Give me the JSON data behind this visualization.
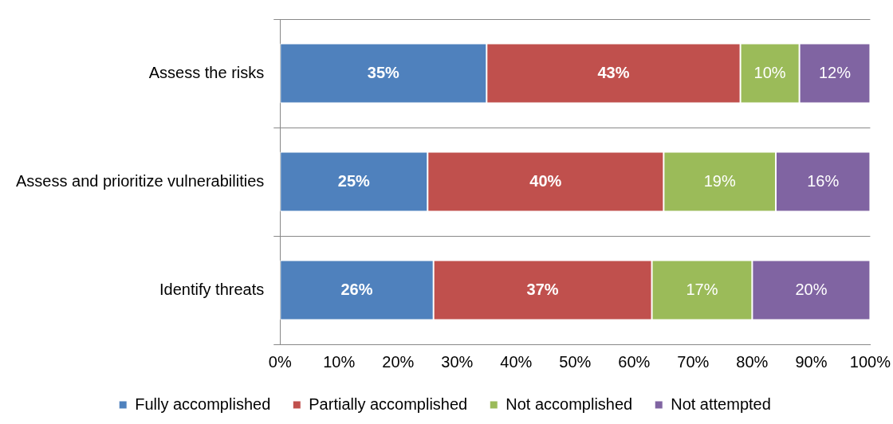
{
  "chart_data": {
    "type": "bar",
    "orientation": "horizontal",
    "stacked": true,
    "categories": [
      "Assess the risks",
      "Assess and prioritize vulnerabilities",
      "Identify threats"
    ],
    "series": [
      {
        "name": "Fully accomplished",
        "color": "#4f81bd",
        "values": [
          35,
          25,
          26
        ],
        "value_labels": [
          "35%",
          "25%",
          "26%"
        ]
      },
      {
        "name": "Partially accomplished",
        "color": "#c0504d",
        "values": [
          43,
          40,
          37
        ],
        "value_labels": [
          "43%",
          "40%",
          "37%"
        ]
      },
      {
        "name": "Not accomplished",
        "color": "#9bbb59",
        "values": [
          10,
          19,
          17
        ],
        "value_labels": [
          "10%",
          "19%",
          "17%"
        ]
      },
      {
        "name": "Not attempted",
        "color": "#8064a2",
        "values": [
          12,
          16,
          20
        ],
        "value_labels": [
          "12%",
          "16%",
          "20%"
        ]
      }
    ],
    "xlim": [
      0,
      100
    ],
    "xticks": [
      {
        "value": 0,
        "label": "0%"
      },
      {
        "value": 10,
        "label": "10%"
      },
      {
        "value": 20,
        "label": "20%"
      },
      {
        "value": 30,
        "label": "30%"
      },
      {
        "value": 40,
        "label": "40%"
      },
      {
        "value": 50,
        "label": "50%"
      },
      {
        "value": 60,
        "label": "60%"
      },
      {
        "value": 70,
        "label": "70%"
      },
      {
        "value": 80,
        "label": "80%"
      },
      {
        "value": 90,
        "label": "90%"
      },
      {
        "value": 100,
        "label": "100%"
      }
    ],
    "grid": "y",
    "legend": "bottom"
  }
}
